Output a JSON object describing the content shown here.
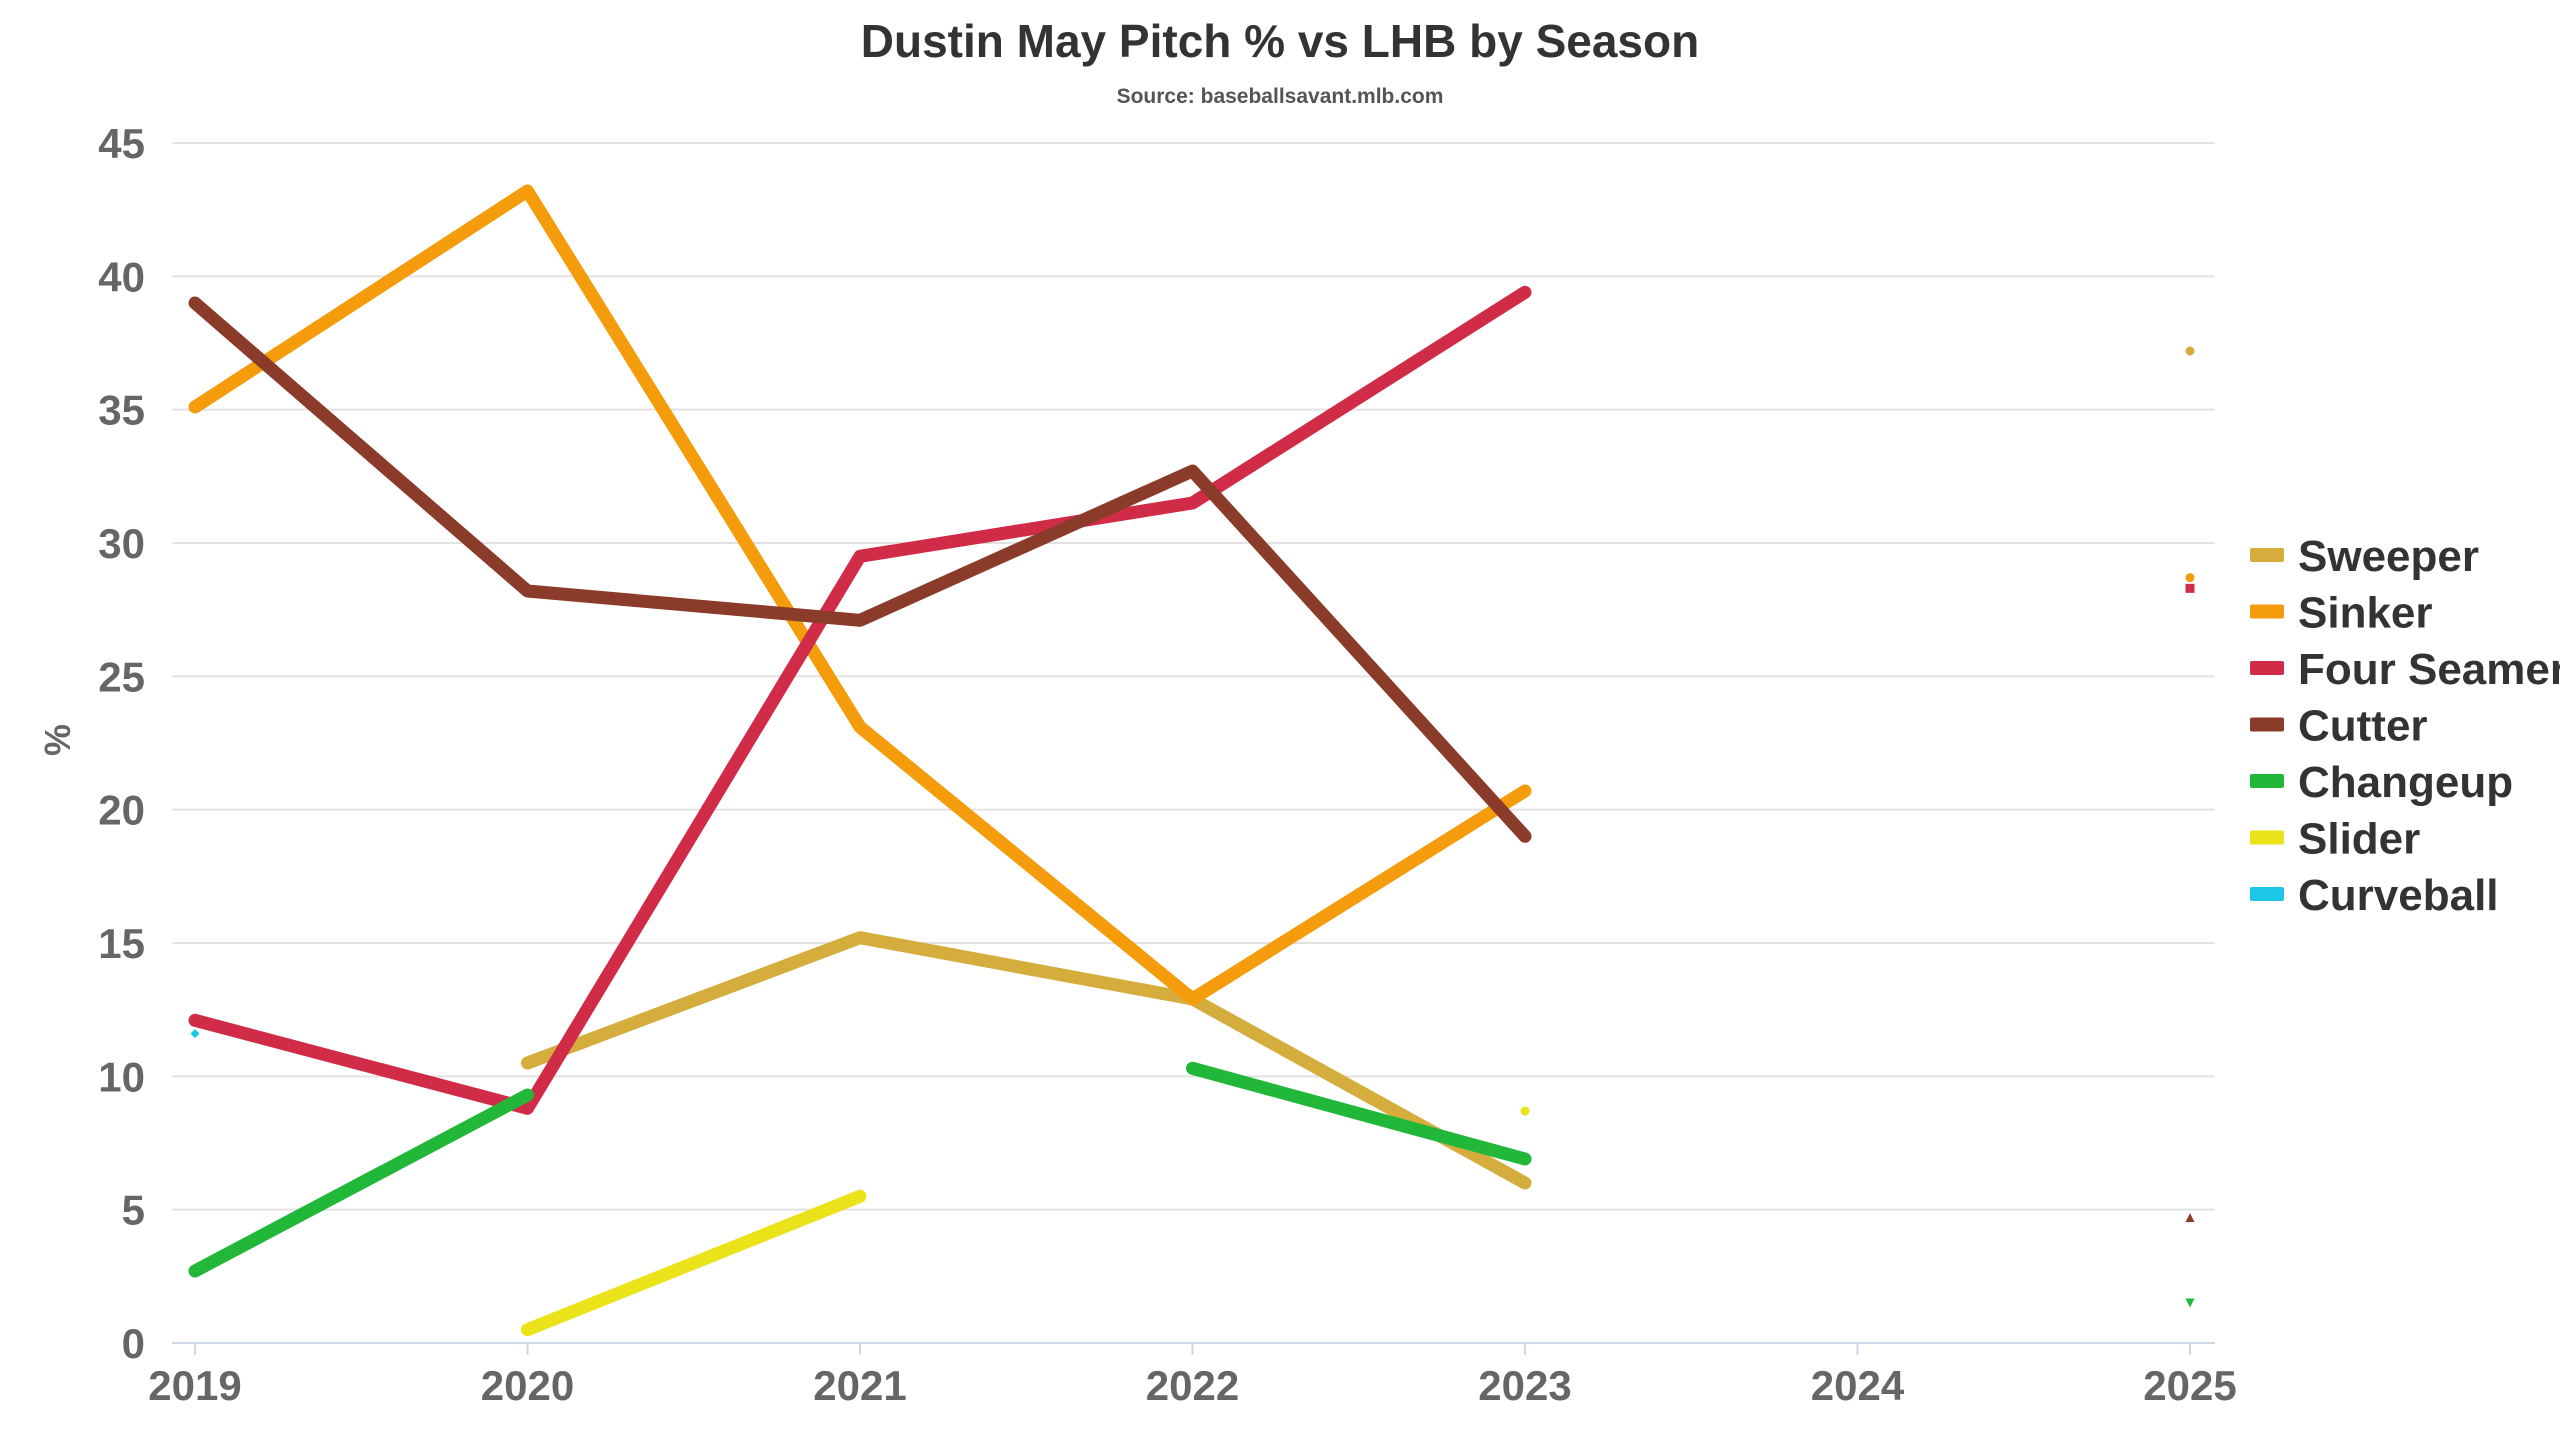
{
  "chart_data": {
    "type": "line",
    "title": "Dustin May Pitch % vs LHB by Season",
    "subtitle": "Source: baseballsavant.mlb.com",
    "xlabel": "",
    "ylabel": "%",
    "x": [
      2019,
      2020,
      2021,
      2022,
      2023,
      2024,
      2025
    ],
    "ylim": [
      0,
      45
    ],
    "yticks": [
      0,
      5,
      10,
      15,
      20,
      25,
      30,
      35,
      40,
      45
    ],
    "grid": true,
    "legend": "right",
    "series": [
      {
        "name": "Sweeper",
        "color": "#d4ad3d",
        "marker": "circle",
        "values": [
          null,
          10.5,
          15.2,
          12.9,
          6.0,
          null,
          37.2
        ]
      },
      {
        "name": "Sinker",
        "color": "#f49c0c",
        "marker": "circle",
        "values": [
          35.1,
          43.2,
          23.1,
          12.9,
          20.7,
          null,
          28.7
        ]
      },
      {
        "name": "Four Seamer",
        "color": "#d02c48",
        "marker": "square",
        "values": [
          12.1,
          8.8,
          29.5,
          31.5,
          39.4,
          null,
          28.3
        ]
      },
      {
        "name": "Cutter",
        "color": "#8b3b29",
        "marker": "triangle",
        "values": [
          39.0,
          28.2,
          27.1,
          32.7,
          19.0,
          null,
          4.7
        ]
      },
      {
        "name": "Changeup",
        "color": "#21b83a",
        "marker": "triangle-down",
        "values": [
          2.7,
          9.3,
          null,
          10.3,
          6.9,
          null,
          1.5
        ]
      },
      {
        "name": "Slider",
        "color": "#ebe31a",
        "marker": "circle",
        "values": [
          null,
          0.5,
          5.5,
          null,
          8.7,
          null,
          null
        ]
      },
      {
        "name": "Curveball",
        "color": "#1bc6e6",
        "marker": "diamond",
        "values": [
          11.6,
          null,
          null,
          null,
          null,
          null,
          null
        ]
      }
    ]
  }
}
